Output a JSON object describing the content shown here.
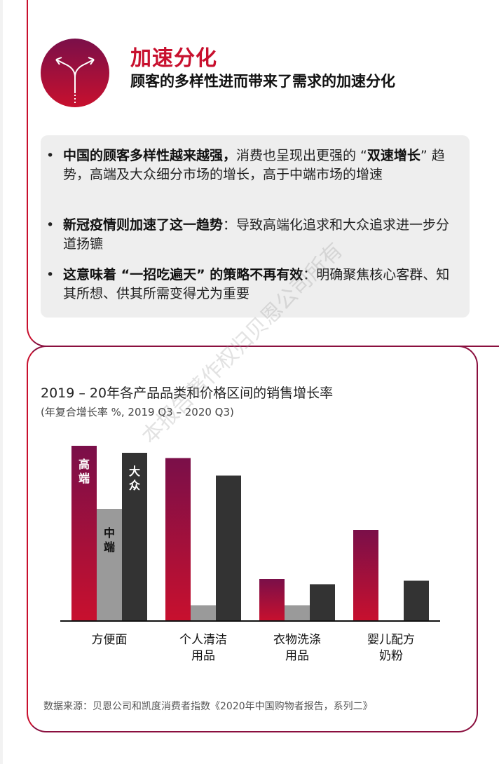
{
  "header": {
    "title": "加速分化",
    "subtitle": "顾客的多样性进而带来了需求的加速分化",
    "icon": "diverging-arrows-icon"
  },
  "bullets": [
    {
      "bold": "中国的顾客多样性越来越强，",
      "text": "消费也呈现出更强的 “",
      "bold2": "双速增长",
      "text2": "” 趋势，高端及大众细分市场的增长，高于中端市场的增速"
    },
    {
      "bold": "新冠疫情则加速了这一趋势",
      "text": "：导致高端化追求和大众追求进一步分道扬镳"
    },
    {
      "bold": "这意味着 “一招吃遍天” 的策略不再有效",
      "text": "：明确聚焦核心客群、知其所想、供其所需变得尤为重要"
    }
  ],
  "watermark": "本报告著作权归贝恩公司所有",
  "source": "数据来源：贝恩公司和凯度消费者指数《2020年中国购物者报告，系列二》",
  "colors": {
    "premium_top": "#7a0f49",
    "premium_bottom": "#c8102e",
    "mid": "#9a9a9a",
    "mass": "#333333",
    "accent": "#c8102e"
  },
  "chart_data": {
    "type": "bar",
    "title": "2019 – 20年各产品品类和价格区间的销售增长率",
    "subtitle": "(年复合增长率 %, 2019 Q3 – 2020 Q3)",
    "categories": [
      "方便面",
      "个人清洁用品",
      "衣物洗涤用品",
      "婴儿配方奶粉"
    ],
    "category_lines": [
      [
        "方便面"
      ],
      [
        "个人清洁",
        "用品"
      ],
      [
        "衣物洗涤",
        "用品"
      ],
      [
        "婴儿配方",
        "奶粉"
      ]
    ],
    "series": [
      {
        "name": "高端",
        "values": [
          100,
          93,
          24,
          52
        ]
      },
      {
        "name": "中端",
        "values": [
          64,
          9,
          9,
          0
        ]
      },
      {
        "name": "大众",
        "values": [
          96,
          83,
          21,
          23
        ]
      }
    ],
    "ylim": [
      0,
      100
    ],
    "legend": "labels-inside-first-group",
    "grid": false
  }
}
